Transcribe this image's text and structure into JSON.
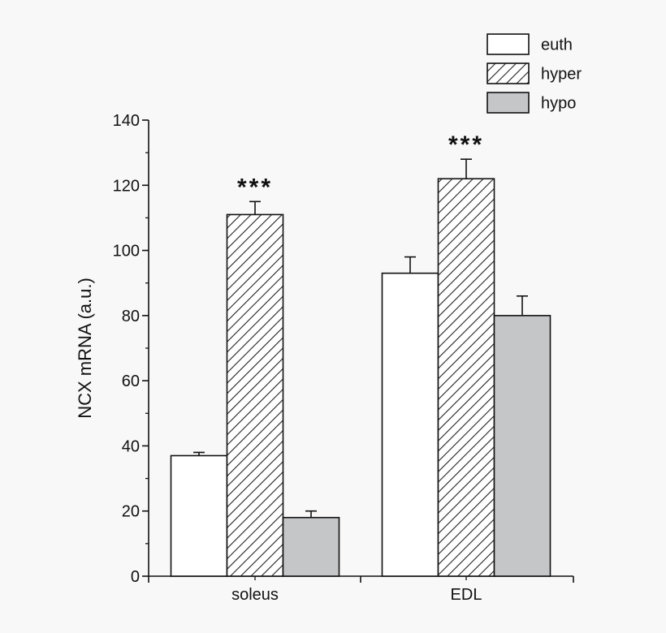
{
  "chart_data": {
    "type": "bar",
    "categories": [
      "soleus",
      "EDL"
    ],
    "series": [
      {
        "name": "euth",
        "values": [
          37,
          93
        ],
        "errors": [
          1,
          5
        ],
        "fill": "#ffffff",
        "pattern": "none"
      },
      {
        "name": "hyper",
        "values": [
          111,
          122
        ],
        "errors": [
          4,
          6
        ],
        "fill": "#ffffff",
        "pattern": "hatch"
      },
      {
        "name": "hypo",
        "values": [
          18,
          80
        ],
        "errors": [
          2,
          6
        ],
        "fill": "#c5c6c8",
        "pattern": "none"
      }
    ],
    "significance": [
      "***",
      "***"
    ],
    "ylabel": "NCX mRNA (a.u.)",
    "xlabel": "",
    "ylim": [
      0,
      140
    ],
    "yticks": [
      0,
      20,
      40,
      60,
      80,
      100,
      120,
      140
    ],
    "legend_position": "top-right",
    "grid": false
  }
}
